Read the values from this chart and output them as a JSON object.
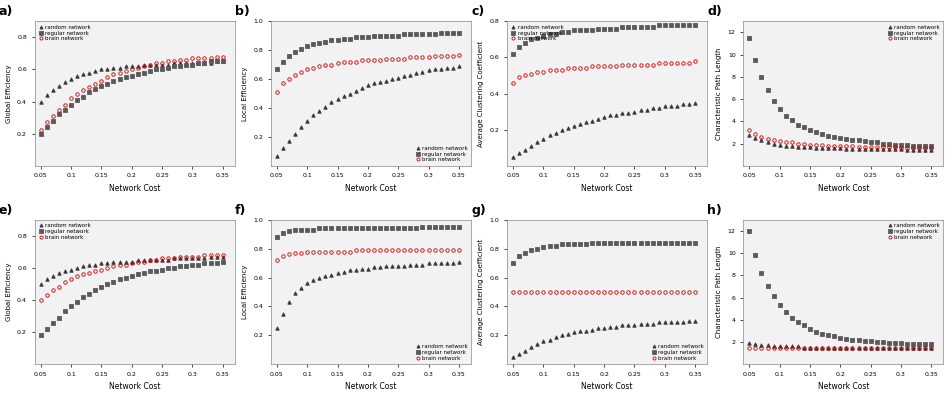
{
  "x": [
    0.05,
    0.06,
    0.07,
    0.08,
    0.09,
    0.1,
    0.11,
    0.12,
    0.13,
    0.14,
    0.15,
    0.16,
    0.17,
    0.18,
    0.19,
    0.2,
    0.21,
    0.22,
    0.23,
    0.24,
    0.25,
    0.26,
    0.27,
    0.28,
    0.29,
    0.3,
    0.31,
    0.32,
    0.33,
    0.34,
    0.35
  ],
  "panels_top": {
    "a": {
      "title": "a)",
      "ylabel": "Global Efficiency",
      "random": [
        0.4,
        0.44,
        0.47,
        0.5,
        0.52,
        0.54,
        0.56,
        0.57,
        0.58,
        0.59,
        0.6,
        0.6,
        0.61,
        0.61,
        0.62,
        0.62,
        0.62,
        0.63,
        0.63,
        0.63,
        0.63,
        0.63,
        0.64,
        0.64,
        0.64,
        0.64,
        0.64,
        0.64,
        0.64,
        0.65,
        0.65
      ],
      "regular": [
        0.2,
        0.24,
        0.28,
        0.32,
        0.35,
        0.38,
        0.41,
        0.43,
        0.46,
        0.48,
        0.5,
        0.51,
        0.53,
        0.54,
        0.55,
        0.56,
        0.57,
        0.58,
        0.59,
        0.6,
        0.6,
        0.61,
        0.62,
        0.62,
        0.63,
        0.63,
        0.64,
        0.64,
        0.65,
        0.65,
        0.65
      ],
      "brain": [
        0.22,
        0.27,
        0.31,
        0.35,
        0.38,
        0.42,
        0.45,
        0.47,
        0.49,
        0.51,
        0.53,
        0.55,
        0.57,
        0.58,
        0.59,
        0.6,
        0.61,
        0.62,
        0.63,
        0.64,
        0.64,
        0.65,
        0.65,
        0.66,
        0.66,
        0.67,
        0.67,
        0.67,
        0.67,
        0.68,
        0.68
      ],
      "legend_loc": "upper left",
      "ylim": [
        0.0,
        0.9
      ],
      "yticks": [
        0.2,
        0.4,
        0.6,
        0.8
      ]
    },
    "b": {
      "title": "b)",
      "ylabel": "Local Efficiency",
      "random": [
        0.07,
        0.12,
        0.17,
        0.22,
        0.27,
        0.31,
        0.35,
        0.38,
        0.41,
        0.44,
        0.46,
        0.48,
        0.5,
        0.52,
        0.54,
        0.56,
        0.57,
        0.58,
        0.59,
        0.6,
        0.61,
        0.62,
        0.63,
        0.64,
        0.65,
        0.66,
        0.67,
        0.67,
        0.68,
        0.68,
        0.69
      ],
      "regular": [
        0.67,
        0.72,
        0.76,
        0.79,
        0.81,
        0.83,
        0.84,
        0.85,
        0.86,
        0.87,
        0.87,
        0.88,
        0.88,
        0.89,
        0.89,
        0.89,
        0.9,
        0.9,
        0.9,
        0.9,
        0.9,
        0.91,
        0.91,
        0.91,
        0.91,
        0.91,
        0.91,
        0.92,
        0.92,
        0.92,
        0.92
      ],
      "brain": [
        0.51,
        0.57,
        0.6,
        0.63,
        0.65,
        0.67,
        0.68,
        0.69,
        0.7,
        0.7,
        0.71,
        0.72,
        0.72,
        0.72,
        0.73,
        0.73,
        0.73,
        0.73,
        0.74,
        0.74,
        0.74,
        0.74,
        0.75,
        0.75,
        0.75,
        0.75,
        0.76,
        0.76,
        0.76,
        0.76,
        0.77
      ],
      "legend_loc": "lower right",
      "ylim": [
        0.0,
        1.0
      ],
      "yticks": [
        0.2,
        0.4,
        0.6,
        0.8,
        1.0
      ]
    },
    "c": {
      "title": "c)",
      "ylabel": "Average Clustering Coefficient",
      "random": [
        0.05,
        0.07,
        0.09,
        0.11,
        0.13,
        0.15,
        0.17,
        0.18,
        0.2,
        0.21,
        0.22,
        0.23,
        0.24,
        0.25,
        0.26,
        0.27,
        0.28,
        0.28,
        0.29,
        0.29,
        0.3,
        0.31,
        0.31,
        0.32,
        0.32,
        0.33,
        0.33,
        0.33,
        0.34,
        0.34,
        0.35
      ],
      "regular": [
        0.62,
        0.66,
        0.68,
        0.7,
        0.71,
        0.72,
        0.73,
        0.73,
        0.74,
        0.74,
        0.75,
        0.75,
        0.75,
        0.75,
        0.76,
        0.76,
        0.76,
        0.76,
        0.77,
        0.77,
        0.77,
        0.77,
        0.77,
        0.77,
        0.78,
        0.78,
        0.78,
        0.78,
        0.78,
        0.78,
        0.78
      ],
      "brain": [
        0.46,
        0.49,
        0.5,
        0.51,
        0.52,
        0.52,
        0.53,
        0.53,
        0.53,
        0.54,
        0.54,
        0.54,
        0.54,
        0.55,
        0.55,
        0.55,
        0.55,
        0.55,
        0.56,
        0.56,
        0.56,
        0.56,
        0.56,
        0.56,
        0.57,
        0.57,
        0.57,
        0.57,
        0.57,
        0.57,
        0.58
      ],
      "legend_loc": "upper left",
      "ylim": [
        0.0,
        0.8
      ],
      "yticks": [
        0.2,
        0.4,
        0.6,
        0.8
      ]
    },
    "d": {
      "title": "d)",
      "ylabel": "Characteristic Path Length",
      "random": [
        2.8,
        2.5,
        2.3,
        2.1,
        2.0,
        1.9,
        1.8,
        1.8,
        1.7,
        1.7,
        1.7,
        1.6,
        1.6,
        1.6,
        1.6,
        1.6,
        1.5,
        1.5,
        1.5,
        1.5,
        1.5,
        1.5,
        1.5,
        1.5,
        1.5,
        1.5,
        1.4,
        1.4,
        1.4,
        1.4,
        1.4
      ],
      "regular": [
        11.5,
        9.5,
        8.0,
        6.8,
        5.8,
        5.1,
        4.5,
        4.1,
        3.7,
        3.5,
        3.2,
        3.0,
        2.9,
        2.7,
        2.6,
        2.5,
        2.4,
        2.3,
        2.3,
        2.2,
        2.1,
        2.1,
        2.0,
        2.0,
        1.9,
        1.9,
        1.9,
        1.8,
        1.8,
        1.8,
        1.8
      ],
      "brain": [
        3.2,
        2.9,
        2.6,
        2.4,
        2.3,
        2.2,
        2.1,
        2.1,
        2.0,
        2.0,
        1.9,
        1.9,
        1.9,
        1.8,
        1.8,
        1.8,
        1.8,
        1.8,
        1.7,
        1.7,
        1.7,
        1.7,
        1.7,
        1.7,
        1.7,
        1.6,
        1.6,
        1.6,
        1.6,
        1.6,
        1.6
      ],
      "legend_loc": "upper right",
      "ylim": [
        0,
        13
      ],
      "yticks": [
        2,
        4,
        6,
        8,
        10,
        12
      ]
    }
  },
  "panels_bottom": {
    "e": {
      "title": "e)",
      "ylabel": "Global Efficiency",
      "random": [
        0.5,
        0.53,
        0.55,
        0.57,
        0.58,
        0.59,
        0.6,
        0.61,
        0.62,
        0.62,
        0.63,
        0.63,
        0.64,
        0.64,
        0.64,
        0.64,
        0.65,
        0.65,
        0.65,
        0.65,
        0.65,
        0.65,
        0.66,
        0.66,
        0.66,
        0.66,
        0.66,
        0.66,
        0.67,
        0.67,
        0.67
      ],
      "regular": [
        0.18,
        0.22,
        0.26,
        0.29,
        0.33,
        0.36,
        0.39,
        0.42,
        0.44,
        0.46,
        0.48,
        0.5,
        0.51,
        0.53,
        0.54,
        0.55,
        0.56,
        0.57,
        0.58,
        0.58,
        0.59,
        0.6,
        0.6,
        0.61,
        0.61,
        0.62,
        0.62,
        0.63,
        0.63,
        0.63,
        0.64
      ],
      "brain": [
        0.4,
        0.43,
        0.46,
        0.48,
        0.51,
        0.53,
        0.55,
        0.56,
        0.57,
        0.58,
        0.59,
        0.6,
        0.61,
        0.62,
        0.62,
        0.63,
        0.64,
        0.64,
        0.65,
        0.65,
        0.66,
        0.66,
        0.66,
        0.67,
        0.67,
        0.67,
        0.67,
        0.68,
        0.68,
        0.68,
        0.68
      ],
      "legend_loc": "upper left",
      "ylim": [
        0.0,
        0.9
      ],
      "yticks": [
        0.2,
        0.4,
        0.6,
        0.8
      ]
    },
    "f": {
      "title": "f)",
      "ylabel": "Local Efficiency",
      "random": [
        0.25,
        0.35,
        0.43,
        0.49,
        0.53,
        0.56,
        0.58,
        0.6,
        0.61,
        0.62,
        0.63,
        0.64,
        0.65,
        0.65,
        0.66,
        0.66,
        0.67,
        0.67,
        0.68,
        0.68,
        0.68,
        0.68,
        0.69,
        0.69,
        0.69,
        0.7,
        0.7,
        0.7,
        0.7,
        0.7,
        0.71
      ],
      "regular": [
        0.88,
        0.91,
        0.92,
        0.93,
        0.93,
        0.93,
        0.93,
        0.94,
        0.94,
        0.94,
        0.94,
        0.94,
        0.94,
        0.94,
        0.94,
        0.94,
        0.94,
        0.94,
        0.94,
        0.94,
        0.94,
        0.94,
        0.94,
        0.94,
        0.95,
        0.95,
        0.95,
        0.95,
        0.95,
        0.95,
        0.95
      ],
      "brain": [
        0.72,
        0.75,
        0.76,
        0.77,
        0.77,
        0.78,
        0.78,
        0.78,
        0.78,
        0.78,
        0.78,
        0.78,
        0.78,
        0.79,
        0.79,
        0.79,
        0.79,
        0.79,
        0.79,
        0.79,
        0.79,
        0.79,
        0.79,
        0.79,
        0.79,
        0.79,
        0.79,
        0.79,
        0.79,
        0.79,
        0.79
      ],
      "legend_loc": "lower right",
      "ylim": [
        0.0,
        1.0
      ],
      "yticks": [
        0.2,
        0.4,
        0.6,
        0.8,
        1.0
      ]
    },
    "g": {
      "title": "g)",
      "ylabel": "Average Clustering Coefficient",
      "random": [
        0.05,
        0.07,
        0.09,
        0.12,
        0.14,
        0.16,
        0.17,
        0.19,
        0.2,
        0.21,
        0.22,
        0.23,
        0.23,
        0.24,
        0.25,
        0.25,
        0.26,
        0.26,
        0.27,
        0.27,
        0.27,
        0.28,
        0.28,
        0.28,
        0.29,
        0.29,
        0.29,
        0.29,
        0.29,
        0.3,
        0.3
      ],
      "regular": [
        0.7,
        0.75,
        0.77,
        0.79,
        0.8,
        0.81,
        0.82,
        0.82,
        0.83,
        0.83,
        0.83,
        0.83,
        0.83,
        0.84,
        0.84,
        0.84,
        0.84,
        0.84,
        0.84,
        0.84,
        0.84,
        0.84,
        0.84,
        0.84,
        0.84,
        0.84,
        0.84,
        0.84,
        0.84,
        0.84,
        0.84
      ],
      "brain": [
        0.5,
        0.5,
        0.5,
        0.5,
        0.5,
        0.5,
        0.5,
        0.5,
        0.5,
        0.5,
        0.5,
        0.5,
        0.5,
        0.5,
        0.5,
        0.5,
        0.5,
        0.5,
        0.5,
        0.5,
        0.5,
        0.5,
        0.5,
        0.5,
        0.5,
        0.5,
        0.5,
        0.5,
        0.5,
        0.5,
        0.5
      ],
      "legend_loc": "lower right",
      "ylim": [
        0.0,
        1.0
      ],
      "yticks": [
        0.2,
        0.4,
        0.6,
        0.8,
        1.0
      ]
    },
    "h": {
      "title": "h)",
      "ylabel": "Characteristic Path Length",
      "random": [
        1.9,
        1.8,
        1.7,
        1.7,
        1.6,
        1.6,
        1.6,
        1.6,
        1.6,
        1.5,
        1.5,
        1.5,
        1.5,
        1.5,
        1.5,
        1.5,
        1.5,
        1.5,
        1.5,
        1.5,
        1.5,
        1.5,
        1.5,
        1.5,
        1.5,
        1.5,
        1.5,
        1.5,
        1.5,
        1.5,
        1.5
      ],
      "regular": [
        12.0,
        9.8,
        8.2,
        7.0,
        6.1,
        5.3,
        4.7,
        4.2,
        3.8,
        3.5,
        3.2,
        2.9,
        2.7,
        2.6,
        2.5,
        2.4,
        2.3,
        2.2,
        2.2,
        2.1,
        2.1,
        2.0,
        2.0,
        1.9,
        1.9,
        1.9,
        1.8,
        1.8,
        1.8,
        1.8,
        1.8
      ],
      "brain": [
        1.5,
        1.5,
        1.5,
        1.5,
        1.5,
        1.5,
        1.5,
        1.5,
        1.5,
        1.5,
        1.5,
        1.5,
        1.5,
        1.5,
        1.5,
        1.5,
        1.5,
        1.5,
        1.5,
        1.5,
        1.5,
        1.5,
        1.5,
        1.5,
        1.5,
        1.5,
        1.5,
        1.5,
        1.5,
        1.5,
        1.5
      ],
      "legend_loc": "upper right",
      "ylim": [
        0,
        13
      ],
      "yticks": [
        2,
        4,
        6,
        8,
        10,
        12
      ]
    }
  },
  "colors": {
    "random": "#3a3a3a",
    "regular": "#5a5a5a",
    "brain": "#cc0000"
  },
  "markers": {
    "random": "^",
    "regular": "s",
    "brain": "o"
  },
  "xlabel": "Network Cost",
  "markersize": 2.5,
  "xticks": [
    0.05,
    0.1,
    0.15,
    0.2,
    0.25,
    0.3,
    0.35
  ],
  "xtick_labels": [
    "0.05",
    "0.1",
    "0.15",
    "0.2",
    "0.25",
    "0.3",
    "0.35"
  ],
  "bg_color": "#f0f0f0"
}
